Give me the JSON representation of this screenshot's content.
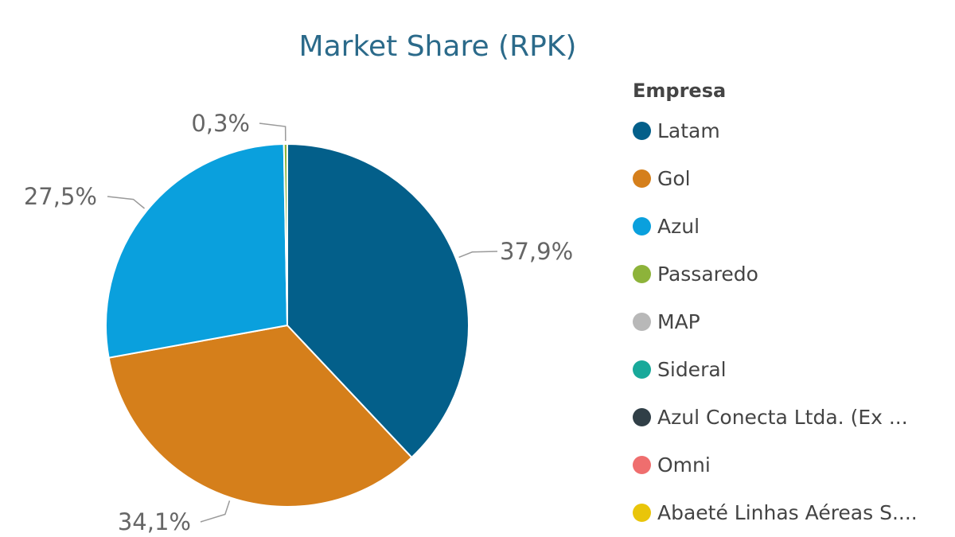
{
  "chart_data": {
    "type": "pie",
    "title": "Market Share (RPK)",
    "legend_title": "Empresa",
    "legend_position": "right",
    "slices": [
      {
        "name": "Latam",
        "value": 37.9,
        "label": "37,9%",
        "color": "#035f8a"
      },
      {
        "name": "Gol",
        "value": 34.1,
        "label": "34,1%",
        "color": "#d57f1b"
      },
      {
        "name": "Azul",
        "value": 27.5,
        "label": "27,5%",
        "color": "#0aa0dd"
      },
      {
        "name": "Passaredo",
        "value": 0.3,
        "label": "0,3%",
        "color": "#8db33a"
      },
      {
        "name": "MAP",
        "value": 0,
        "label": "",
        "color": "#b8b8b8"
      },
      {
        "name": "Sideral",
        "value": 0,
        "label": "",
        "color": "#18a99a"
      },
      {
        "name": "Azul Conecta Ltda. (Ex ...",
        "value": 0,
        "label": "",
        "color": "#303f47"
      },
      {
        "name": "Omni",
        "value": 0,
        "label": "",
        "color": "#ef6e6e"
      },
      {
        "name": "Abaeté Linhas Aéreas S....",
        "value": 0,
        "label": "",
        "color": "#e9c50a"
      }
    ]
  }
}
